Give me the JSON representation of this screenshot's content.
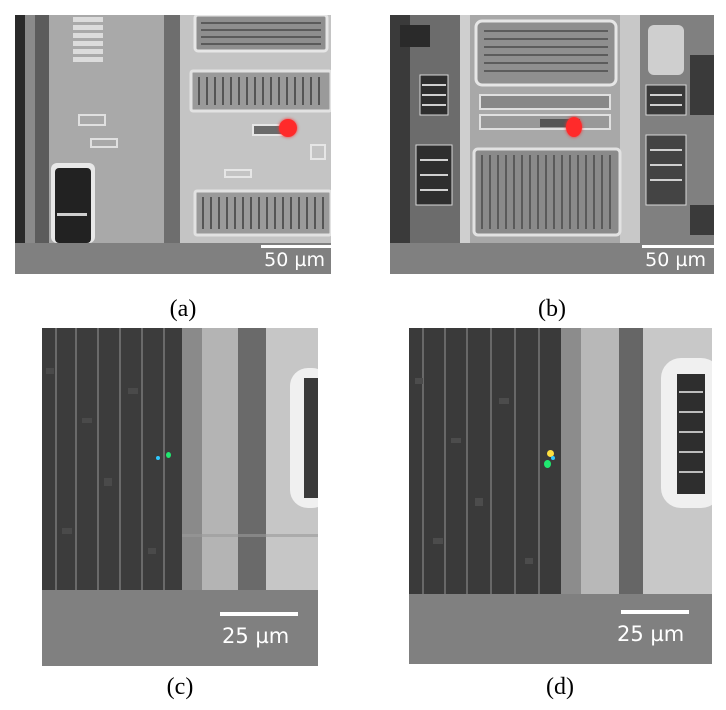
{
  "panels": [
    {
      "caption": "(a)",
      "scale_label": "50 µm"
    },
    {
      "caption": "(b)",
      "scale_label": "50 µm"
    },
    {
      "caption": "(c)",
      "scale_label": "25 µm"
    },
    {
      "caption": "(d)",
      "scale_label": "25 µm"
    }
  ],
  "colors": {
    "hotspot_red": "#ff2a2a",
    "hotspot_green": "#20e870",
    "hotspot_cyan": "#30c8ff",
    "hotspot_yellow": "#ffe040",
    "scalebar_background": "#808080",
    "scalebar_line": "#ffffff"
  }
}
